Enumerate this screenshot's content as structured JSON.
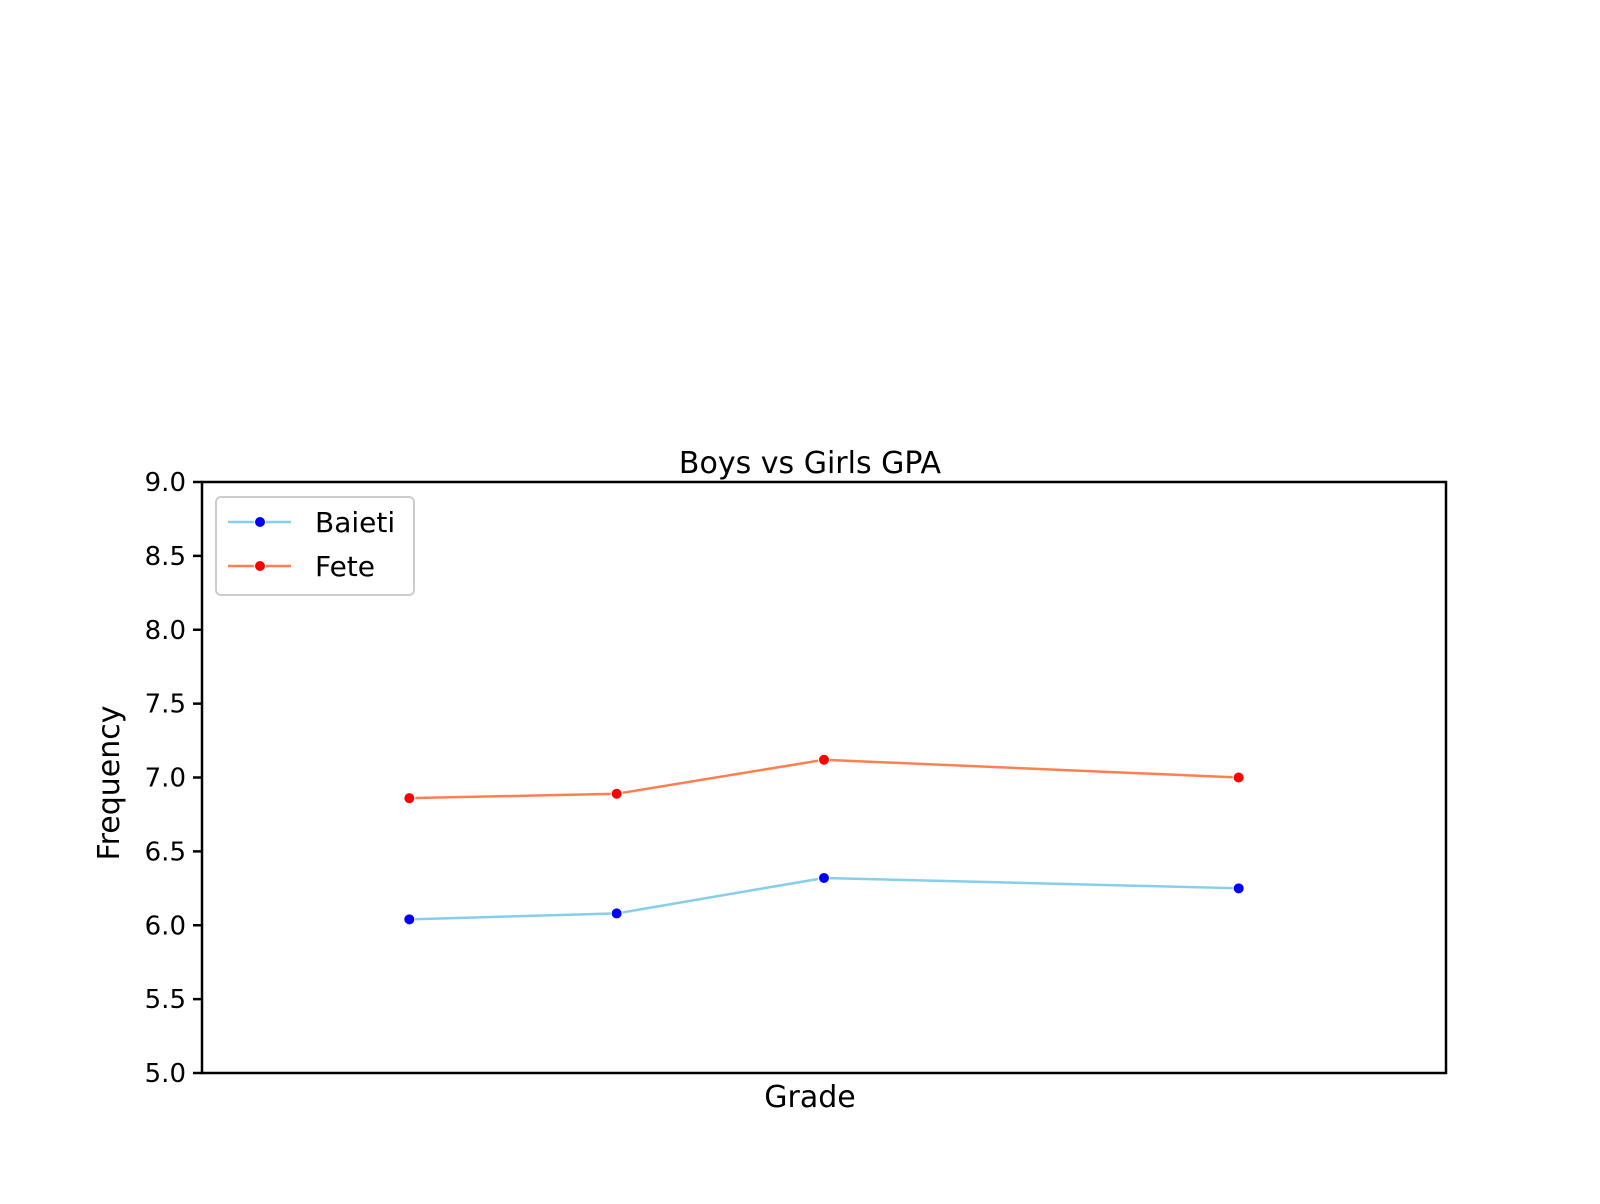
{
  "chart_data": {
    "type": "line",
    "title": "Boys vs Girls GPA",
    "xlabel": "Grade",
    "ylabel": "Frequency",
    "ylim": [
      5.0,
      9.0
    ],
    "yticks": [
      "5.0",
      "5.5",
      "6.0",
      "6.5",
      "7.0",
      "7.5",
      "8.0",
      "8.5",
      "9.0"
    ],
    "x": [
      1,
      2,
      3,
      5
    ],
    "xlim": [
      0,
      6
    ],
    "grid": false,
    "legend_position": "top-left",
    "series": [
      {
        "name": "Baieti",
        "line_color": "#87ceeb",
        "marker_color": "#0000ff",
        "values": [
          6.04,
          6.08,
          6.32,
          6.25
        ]
      },
      {
        "name": "Fete",
        "line_color": "#ff7f50",
        "marker_color": "#ff0000",
        "values": [
          6.86,
          6.89,
          7.12,
          7.0
        ]
      }
    ]
  }
}
